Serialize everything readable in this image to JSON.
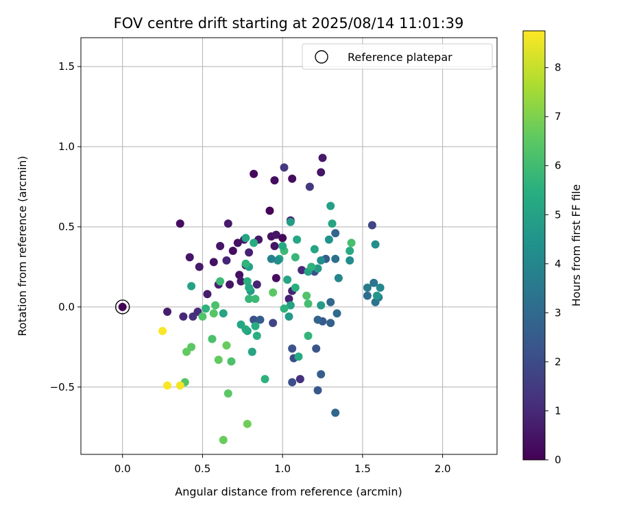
{
  "chart_data": {
    "type": "scatter",
    "title": "FOV centre drift starting at 2025/08/14 11:01:39",
    "xlabel": "Angular distance from reference (arcmin)",
    "ylabel": "Rotation from reference (arcmin)",
    "xlim": [
      -0.26,
      2.34
    ],
    "ylim": [
      -0.92,
      1.68
    ],
    "xticks": [
      0.0,
      0.5,
      1.0,
      1.5,
      2.0
    ],
    "yticks": [
      -0.5,
      0.0,
      0.5,
      1.0,
      1.5
    ],
    "xtick_labels": [
      "0.0",
      "0.5",
      "1.0",
      "1.5",
      "2.0"
    ],
    "ytick_labels": [
      "−0.5",
      "0.0",
      "0.5",
      "1.0",
      "1.5"
    ],
    "grid": true,
    "legend": {
      "position": "top-right",
      "entries": [
        "Reference platepar"
      ]
    },
    "reference_point": {
      "x": 0.0,
      "y": 0.0
    },
    "colorbar": {
      "label": "Hours from first FF file",
      "range": [
        0,
        8.75
      ],
      "ticks": [
        0,
        1,
        2,
        3,
        4,
        5,
        6,
        7,
        8
      ],
      "tick_labels": [
        "0",
        "1",
        "2",
        "3",
        "4",
        "5",
        "6",
        "7",
        "8"
      ],
      "colormap": "viridis"
    },
    "points": [
      {
        "x": 0.0,
        "y": 0.0,
        "h": 0.0
      },
      {
        "x": 0.36,
        "y": 0.52,
        "h": 0.3
      },
      {
        "x": 0.42,
        "y": 0.31,
        "h": 0.5
      },
      {
        "x": 0.48,
        "y": 0.25,
        "h": 0.6
      },
      {
        "x": 0.53,
        "y": 0.08,
        "h": 0.7
      },
      {
        "x": 0.57,
        "y": 0.28,
        "h": 0.4
      },
      {
        "x": 0.61,
        "y": 0.38,
        "h": 0.5
      },
      {
        "x": 0.66,
        "y": 0.52,
        "h": 0.6
      },
      {
        "x": 0.69,
        "y": 0.35,
        "h": 0.3
      },
      {
        "x": 0.72,
        "y": 0.4,
        "h": 0.4
      },
      {
        "x": 0.76,
        "y": 0.42,
        "h": 0.5
      },
      {
        "x": 0.82,
        "y": 0.83,
        "h": 0.2
      },
      {
        "x": 0.85,
        "y": 0.42,
        "h": 0.6
      },
      {
        "x": 0.92,
        "y": 0.6,
        "h": 0.1
      },
      {
        "x": 0.95,
        "y": 0.79,
        "h": 0.3
      },
      {
        "x": 0.93,
        "y": 0.44,
        "h": 0.4
      },
      {
        "x": 0.96,
        "y": 0.45,
        "h": 0.5
      },
      {
        "x": 1.0,
        "y": 0.43,
        "h": 0.2
      },
      {
        "x": 1.01,
        "y": 0.87,
        "h": 1.5
      },
      {
        "x": 1.06,
        "y": 0.8,
        "h": 0.3
      },
      {
        "x": 1.05,
        "y": 0.54,
        "h": 0.8
      },
      {
        "x": 1.17,
        "y": 0.75,
        "h": 1.4
      },
      {
        "x": 1.25,
        "y": 0.93,
        "h": 0.6
      },
      {
        "x": 1.24,
        "y": 0.84,
        "h": 0.5
      },
      {
        "x": 0.6,
        "y": 0.14,
        "h": 0.8
      },
      {
        "x": 0.65,
        "y": 0.29,
        "h": 0.9
      },
      {
        "x": 0.67,
        "y": 0.14,
        "h": 0.5
      },
      {
        "x": 0.73,
        "y": 0.2,
        "h": 0.4
      },
      {
        "x": 0.74,
        "y": 0.16,
        "h": 0.6
      },
      {
        "x": 0.77,
        "y": 0.26,
        "h": 0.7
      },
      {
        "x": 0.79,
        "y": 0.34,
        "h": 0.8
      },
      {
        "x": 0.84,
        "y": 0.14,
        "h": 0.9
      },
      {
        "x": 0.95,
        "y": 0.38,
        "h": 0.5
      },
      {
        "x": 0.96,
        "y": 0.18,
        "h": 0.3
      },
      {
        "x": 0.28,
        "y": -0.03,
        "h": 0.7
      },
      {
        "x": 0.38,
        "y": -0.06,
        "h": 1.0
      },
      {
        "x": 0.44,
        "y": -0.06,
        "h": 1.2
      },
      {
        "x": 0.47,
        "y": -0.03,
        "h": 1.1
      },
      {
        "x": 1.04,
        "y": 0.05,
        "h": 0.8
      },
      {
        "x": 1.06,
        "y": 0.1,
        "h": 0.9
      },
      {
        "x": 1.12,
        "y": 0.23,
        "h": 1.0
      },
      {
        "x": 1.11,
        "y": -0.45,
        "h": 1.2
      },
      {
        "x": 0.94,
        "y": -0.1,
        "h": 1.8
      },
      {
        "x": 0.82,
        "y": -0.08,
        "h": 2.2
      },
      {
        "x": 0.86,
        "y": -0.08,
        "h": 2.6
      },
      {
        "x": 1.06,
        "y": -0.26,
        "h": 2.2
      },
      {
        "x": 1.07,
        "y": -0.32,
        "h": 2.0
      },
      {
        "x": 1.06,
        "y": -0.47,
        "h": 2.1
      },
      {
        "x": 1.21,
        "y": -0.26,
        "h": 2.3
      },
      {
        "x": 1.22,
        "y": -0.52,
        "h": 2.4
      },
      {
        "x": 1.24,
        "y": -0.42,
        "h": 2.6
      },
      {
        "x": 1.33,
        "y": -0.66,
        "h": 2.9
      },
      {
        "x": 1.2,
        "y": 0.22,
        "h": 2.1
      },
      {
        "x": 1.27,
        "y": 0.3,
        "h": 2.5
      },
      {
        "x": 1.25,
        "y": -0.09,
        "h": 2.5
      },
      {
        "x": 1.3,
        "y": -0.1,
        "h": 2.7
      },
      {
        "x": 1.22,
        "y": -0.08,
        "h": 2.8
      },
      {
        "x": 1.3,
        "y": 0.03,
        "h": 2.9
      },
      {
        "x": 1.34,
        "y": -0.04,
        "h": 3.0
      },
      {
        "x": 1.33,
        "y": 0.46,
        "h": 2.8
      },
      {
        "x": 1.33,
        "y": 0.3,
        "h": 3.2
      },
      {
        "x": 1.56,
        "y": 0.51,
        "h": 1.8
      },
      {
        "x": 1.53,
        "y": 0.07,
        "h": 3.1
      },
      {
        "x": 1.53,
        "y": 0.12,
        "h": 3.6
      },
      {
        "x": 1.57,
        "y": 0.15,
        "h": 3.4
      },
      {
        "x": 1.58,
        "y": 0.03,
        "h": 3.3
      },
      {
        "x": 1.6,
        "y": 0.06,
        "h": 3.6
      },
      {
        "x": 1.61,
        "y": 0.12,
        "h": 4.1
      },
      {
        "x": 1.59,
        "y": 0.07,
        "h": 4.6
      },
      {
        "x": 1.58,
        "y": 0.39,
        "h": 4.3
      },
      {
        "x": 1.42,
        "y": 0.29,
        "h": 4.2
      },
      {
        "x": 1.35,
        "y": 0.18,
        "h": 4.0
      },
      {
        "x": 1.29,
        "y": 0.42,
        "h": 4.4
      },
      {
        "x": 1.3,
        "y": 0.63,
        "h": 4.9
      },
      {
        "x": 1.31,
        "y": 0.52,
        "h": 5.1
      },
      {
        "x": 1.42,
        "y": 0.35,
        "h": 5.3
      },
      {
        "x": 1.43,
        "y": 0.4,
        "h": 6.1
      },
      {
        "x": 1.2,
        "y": 0.36,
        "h": 5.1
      },
      {
        "x": 1.22,
        "y": 0.24,
        "h": 4.7
      },
      {
        "x": 1.24,
        "y": 0.29,
        "h": 4.3
      },
      {
        "x": 1.24,
        "y": 0.01,
        "h": 4.8
      },
      {
        "x": 1.16,
        "y": 0.22,
        "h": 5.0
      },
      {
        "x": 1.18,
        "y": 0.25,
        "h": 5.6
      },
      {
        "x": 1.16,
        "y": -0.18,
        "h": 5.7
      },
      {
        "x": 1.15,
        "y": 0.07,
        "h": 6.3
      },
      {
        "x": 1.16,
        "y": 0.02,
        "h": 6.1
      },
      {
        "x": 1.1,
        "y": -0.31,
        "h": 5.3
      },
      {
        "x": 1.08,
        "y": 0.12,
        "h": 5.5
      },
      {
        "x": 1.08,
        "y": 0.31,
        "h": 5.8
      },
      {
        "x": 1.09,
        "y": 0.42,
        "h": 5.2
      },
      {
        "x": 1.05,
        "y": 0.53,
        "h": 4.8
      },
      {
        "x": 1.05,
        "y": 0.01,
        "h": 5.0
      },
      {
        "x": 1.03,
        "y": 0.17,
        "h": 5.1
      },
      {
        "x": 1.04,
        "y": -0.06,
        "h": 4.7
      },
      {
        "x": 1.01,
        "y": 0.35,
        "h": 5.9
      },
      {
        "x": 1.0,
        "y": 0.38,
        "h": 5.3
      },
      {
        "x": 1.01,
        "y": -0.01,
        "h": 5.6
      },
      {
        "x": 0.98,
        "y": 0.3,
        "h": 5.2
      },
      {
        "x": 0.97,
        "y": 0.29,
        "h": 4.3
      },
      {
        "x": 0.93,
        "y": 0.3,
        "h": 3.8
      },
      {
        "x": 0.94,
        "y": 0.09,
        "h": 6.5
      },
      {
        "x": 0.89,
        "y": -0.45,
        "h": 5.6
      },
      {
        "x": 0.84,
        "y": -0.18,
        "h": 5.5
      },
      {
        "x": 0.83,
        "y": -0.12,
        "h": 5.4
      },
      {
        "x": 0.81,
        "y": -0.28,
        "h": 5.1
      },
      {
        "x": 0.78,
        "y": -0.15,
        "h": 4.9
      },
      {
        "x": 0.77,
        "y": -0.14,
        "h": 5.3
      },
      {
        "x": 0.74,
        "y": -0.11,
        "h": 5.2
      },
      {
        "x": 0.8,
        "y": 0.1,
        "h": 4.8
      },
      {
        "x": 0.82,
        "y": 0.4,
        "h": 5.4
      },
      {
        "x": 0.77,
        "y": 0.43,
        "h": 5.1
      },
      {
        "x": 0.79,
        "y": 0.25,
        "h": 5.0
      },
      {
        "x": 0.78,
        "y": 0.16,
        "h": 5.5
      },
      {
        "x": 0.79,
        "y": 0.05,
        "h": 5.8
      },
      {
        "x": 0.83,
        "y": 0.05,
        "h": 5.9
      },
      {
        "x": 0.79,
        "y": 0.12,
        "h": 5.3
      },
      {
        "x": 0.77,
        "y": 0.27,
        "h": 5.7
      },
      {
        "x": 0.63,
        "y": -0.04,
        "h": 5.1
      },
      {
        "x": 0.61,
        "y": 0.16,
        "h": 5.9
      },
      {
        "x": 0.58,
        "y": 0.01,
        "h": 6.2
      },
      {
        "x": 0.57,
        "y": -0.04,
        "h": 6.4
      },
      {
        "x": 0.52,
        "y": -0.01,
        "h": 5.6
      },
      {
        "x": 0.5,
        "y": -0.06,
        "h": 6.3
      },
      {
        "x": 0.43,
        "y": 0.13,
        "h": 5.0
      },
      {
        "x": 0.43,
        "y": -0.25,
        "h": 6.5
      },
      {
        "x": 0.4,
        "y": -0.28,
        "h": 6.6
      },
      {
        "x": 0.39,
        "y": -0.47,
        "h": 6.4
      },
      {
        "x": 0.56,
        "y": -0.2,
        "h": 6.2
      },
      {
        "x": 0.6,
        "y": -0.33,
        "h": 6.6
      },
      {
        "x": 0.65,
        "y": -0.24,
        "h": 6.7
      },
      {
        "x": 0.68,
        "y": -0.34,
        "h": 6.2
      },
      {
        "x": 0.66,
        "y": -0.54,
        "h": 6.5
      },
      {
        "x": 0.63,
        "y": -0.83,
        "h": 6.7
      },
      {
        "x": 0.78,
        "y": -0.73,
        "h": 6.8
      },
      {
        "x": 0.25,
        "y": -0.15,
        "h": 8.7
      },
      {
        "x": 0.28,
        "y": -0.49,
        "h": 8.7
      },
      {
        "x": 0.36,
        "y": -0.49,
        "h": 8.6
      }
    ]
  }
}
